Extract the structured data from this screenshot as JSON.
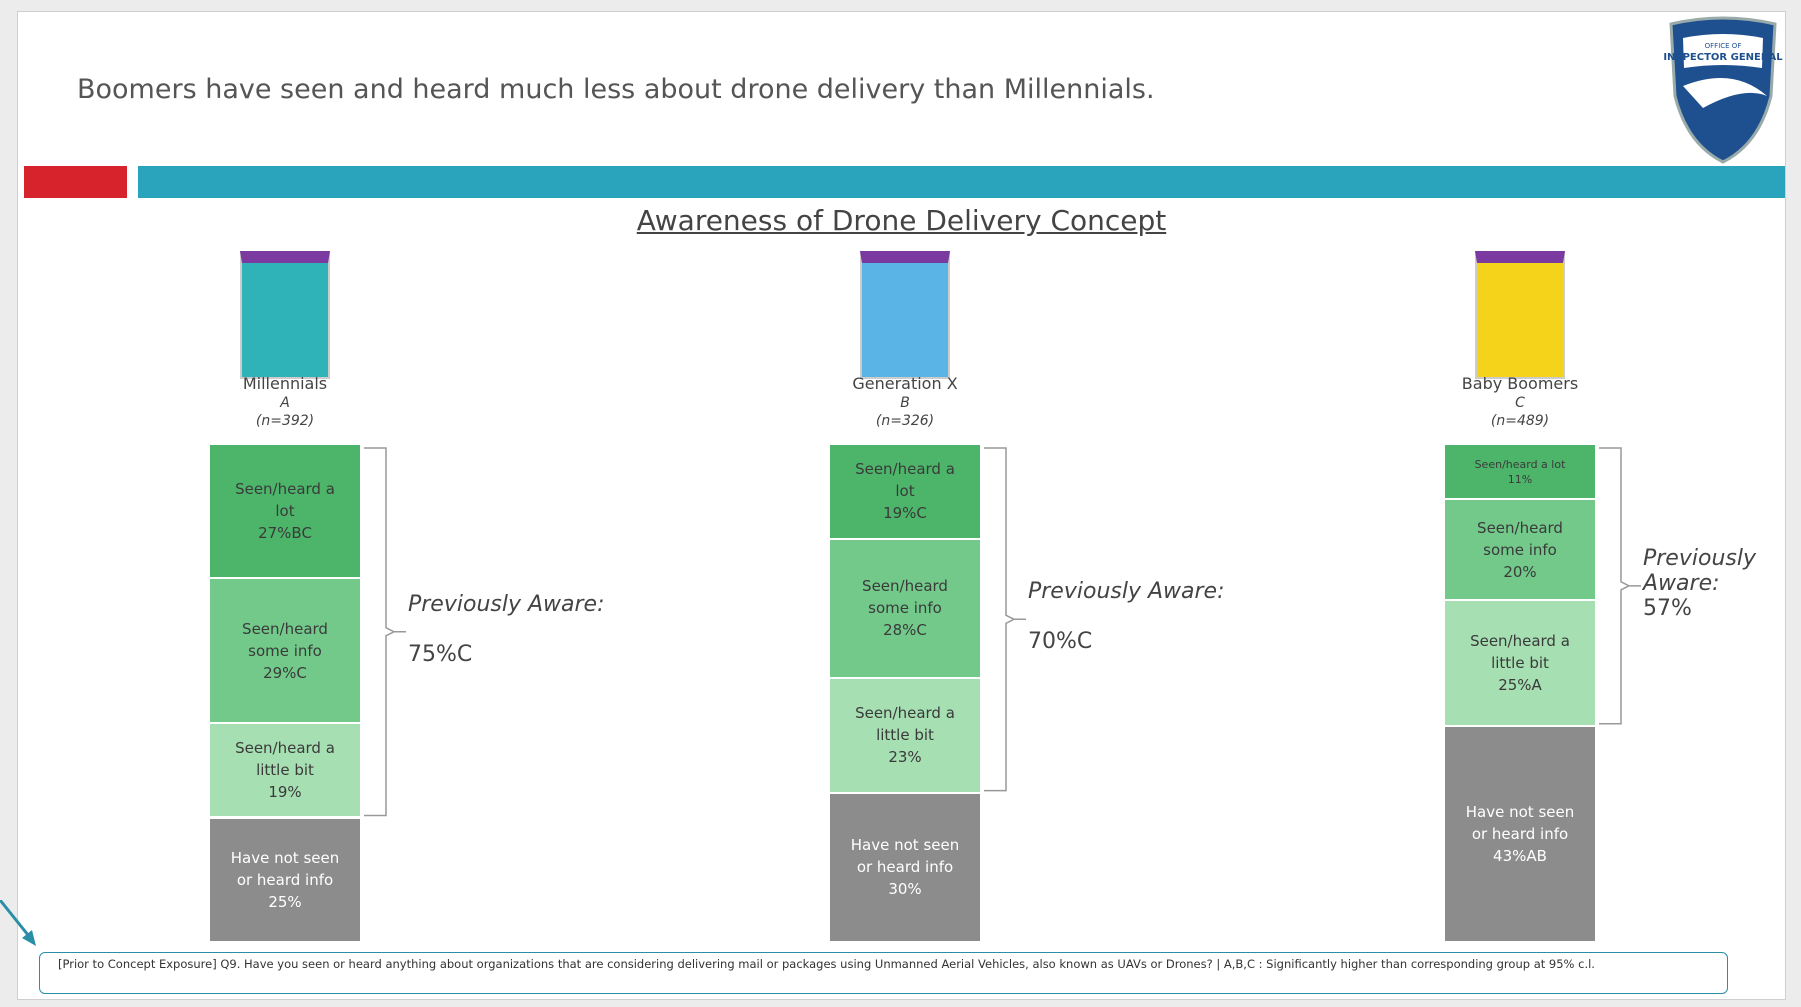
{
  "header": {
    "title": "Boomers have seen and heard much less about drone delivery than Millennials.",
    "logo_text": [
      "OFFICE OF",
      "INSPECTOR GENERAL"
    ]
  },
  "chart_data": {
    "type": "stacked-bar",
    "title": "Awareness of Drone Delivery Concept",
    "categories": [
      "Millennials",
      "Generation X",
      "Baby Boomers"
    ],
    "category_letters": [
      "A",
      "B",
      "C"
    ],
    "sample_sizes": [
      "(n=392)",
      "(n=326)",
      "(n=489)"
    ],
    "series": [
      {
        "name": "Seen/heard a lot",
        "color": "#4db56a",
        "values": [
          27,
          19,
          11
        ],
        "value_labels": [
          "27%BC",
          "19%C",
          "11%"
        ]
      },
      {
        "name": "Seen/heard some info",
        "color": "#72c98a",
        "values": [
          29,
          28,
          20
        ],
        "value_labels": [
          "29%C",
          "28%C",
          "20%"
        ]
      },
      {
        "name": "Seen/heard a little bit",
        "color": "#a6dfb2",
        "values": [
          19,
          23,
          25
        ],
        "value_labels": [
          "19%",
          "23%",
          "25%A"
        ]
      },
      {
        "name": "Have not seen or heard info",
        "color": "#8c8c8c",
        "values": [
          25,
          30,
          43
        ],
        "value_labels": [
          "25%",
          "30%",
          "43%AB"
        ]
      }
    ],
    "previously_aware": {
      "label": "Previously Aware:",
      "values": [
        75,
        70,
        57
      ],
      "value_labels": [
        "75%C",
        "70%C",
        "57%"
      ]
    }
  },
  "footnote": "[Prior to Concept Exposure] Q9. Have you seen or heard anything about organizations that are considering delivering mail or packages using Unmanned Aerial Vehicles, also known as UAVs or Drones? | A,B,C : Significantly higher than corresponding group at 95% c.l."
}
